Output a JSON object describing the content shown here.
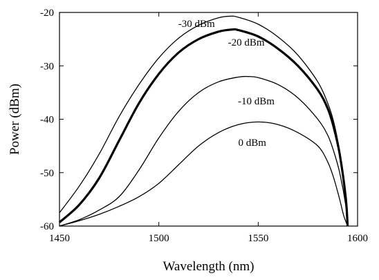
{
  "chart_data": {
    "type": "line",
    "title": "",
    "xlabel": "Wavelength (nm)",
    "ylabel": "Power (dBm)",
    "xlim": [
      1450,
      1600
    ],
    "ylim": [
      -60,
      -20
    ],
    "x_ticks": [
      "1450",
      "1500",
      "1550",
      "1600"
    ],
    "y_ticks": [
      "-20",
      "-30",
      "-40",
      "-50",
      "-60"
    ],
    "grid": false,
    "legend": "none",
    "line_color": "#000000",
    "series": [
      {
        "label": "-30 dBm",
        "x": [
          1450,
          1460,
          1470,
          1480,
          1490,
          1500,
          1510,
          1520,
          1530,
          1536,
          1540,
          1550,
          1560,
          1570,
          1580,
          1585,
          1588,
          1591,
          1594,
          1595
        ],
        "y": [
          -57.5,
          -52.5,
          -46.5,
          -39.5,
          -33.5,
          -28.5,
          -24.8,
          -22.4,
          -21.0,
          -20.7,
          -20.9,
          -22.2,
          -24.6,
          -28.0,
          -33.0,
          -37.0,
          -40.5,
          -46.0,
          -54.0,
          -60.0
        ]
      },
      {
        "label": "-20 dBm",
        "x": [
          1450,
          1460,
          1470,
          1480,
          1490,
          1500,
          1510,
          1520,
          1530,
          1537,
          1540,
          1550,
          1560,
          1570,
          1580,
          1585,
          1588,
          1591,
          1594,
          1595
        ],
        "y": [
          -59.3,
          -56.0,
          -51.0,
          -44.0,
          -37.0,
          -31.5,
          -27.5,
          -25.0,
          -23.6,
          -23.2,
          -23.3,
          -24.5,
          -26.8,
          -30.0,
          -34.5,
          -38.0,
          -41.5,
          -46.5,
          -54.5,
          -60.0
        ]
      },
      {
        "label": "-10 dBm",
        "x": [
          1450,
          1460,
          1470,
          1480,
          1490,
          1500,
          1510,
          1520,
          1530,
          1540,
          1545,
          1550,
          1560,
          1570,
          1580,
          1585,
          1588,
          1591,
          1594,
          1595
        ],
        "y": [
          -60.0,
          -58.8,
          -57.0,
          -54.5,
          -49.5,
          -43.5,
          -38.5,
          -35.0,
          -33.0,
          -32.1,
          -32.0,
          -32.2,
          -33.5,
          -36.0,
          -40.0,
          -43.0,
          -46.0,
          -50.0,
          -56.0,
          -60.0
        ]
      },
      {
        "label": "0 dBm",
        "x": [
          1450,
          1460,
          1470,
          1480,
          1490,
          1500,
          1510,
          1520,
          1530,
          1540,
          1550,
          1560,
          1570,
          1580,
          1585,
          1588,
          1591,
          1593,
          1595
        ],
        "y": [
          -60.0,
          -59.0,
          -57.8,
          -56.3,
          -54.5,
          -52.0,
          -48.5,
          -45.0,
          -42.5,
          -41.0,
          -40.5,
          -41.0,
          -42.5,
          -45.0,
          -48.0,
          -51.0,
          -55.0,
          -58.0,
          -60.0
        ]
      }
    ],
    "annotations": [
      {
        "text": "-30 dBm",
        "x": 1519,
        "y": -22.7
      },
      {
        "text": "-20 dBm",
        "x": 1544,
        "y": -26.2
      },
      {
        "text": "-10 dBm",
        "x": 1549,
        "y": -37.2
      },
      {
        "text": "0 dBm",
        "x": 1547,
        "y": -45.0
      }
    ]
  }
}
